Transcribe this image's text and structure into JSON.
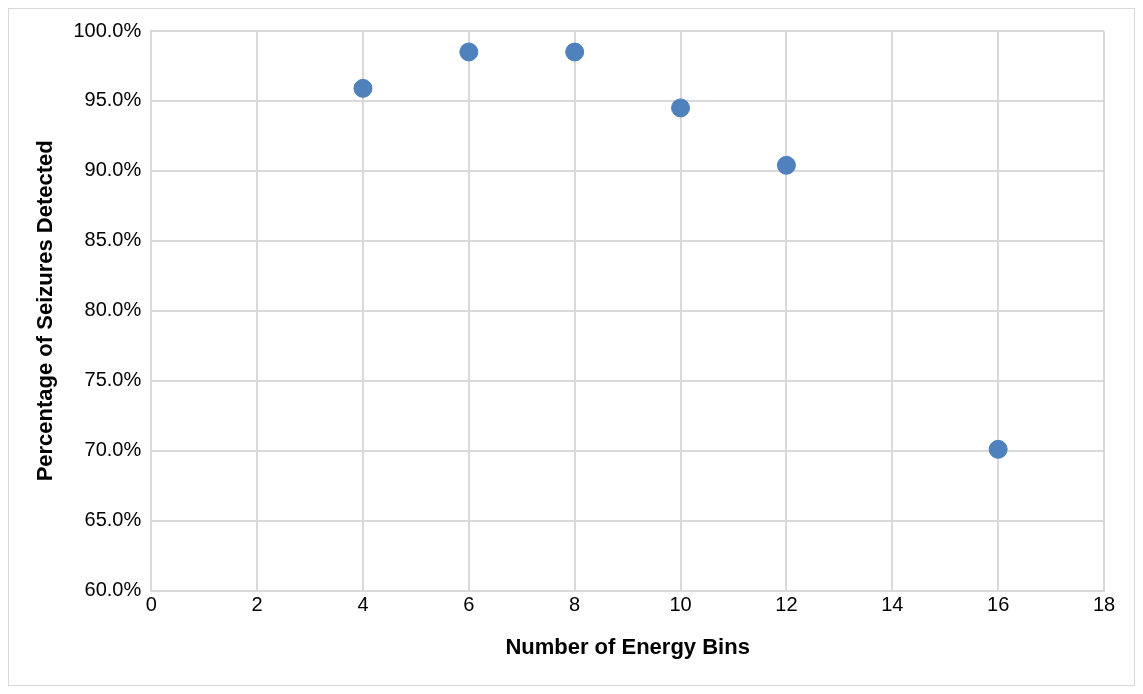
{
  "chart_data": {
    "type": "scatter",
    "xlabel": "Number of Energy Bins",
    "ylabel": "Percentage of Seizures Detected",
    "x": [
      4,
      6,
      8,
      10,
      12,
      16
    ],
    "series": [
      {
        "color": "#4f81bd",
        "values": [
          95.9,
          98.5,
          98.5,
          94.5,
          90.4,
          70.1
        ]
      }
    ],
    "xlim": [
      0,
      18
    ],
    "xticks": [
      0,
      2,
      4,
      6,
      8,
      10,
      12,
      14,
      16,
      18
    ],
    "ylim": [
      60,
      100
    ],
    "yticks": [
      {
        "value": 60,
        "label": "60.0%"
      },
      {
        "value": 65,
        "label": "65.0%"
      },
      {
        "value": 70,
        "label": "70.0%"
      },
      {
        "value": 75,
        "label": "75.0%"
      },
      {
        "value": 80,
        "label": "80.0%"
      },
      {
        "value": 85,
        "label": "85.0%"
      },
      {
        "value": 90,
        "label": "90.0%"
      },
      {
        "value": 95,
        "label": "95.0%"
      },
      {
        "value": 100,
        "label": "100.0%"
      }
    ],
    "grid": true,
    "legend": false,
    "marker": "circle"
  }
}
